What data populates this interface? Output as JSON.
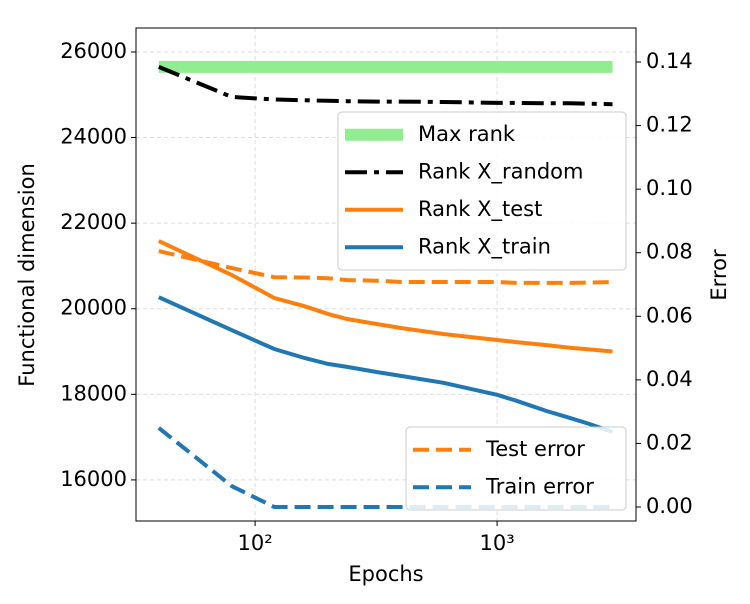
{
  "chart_data": {
    "type": "line",
    "xlabel": "Epochs",
    "ylabel": "Functional dimension",
    "y2label": "Error",
    "xscale": "log",
    "grid": true,
    "legend_loc": "upper right",
    "legend2_loc": "lower right",
    "x": [
      40,
      80,
      120,
      160,
      200,
      240,
      320,
      400,
      600,
      800,
      1000,
      1200,
      1600,
      2000,
      2400,
      3000
    ],
    "xlim": [
      32.2,
      3750
    ],
    "xticks": [
      {
        "value": 100,
        "label": "10²"
      },
      {
        "value": 1000,
        "label": "10³"
      }
    ],
    "ylim": [
      15040,
      26560
    ],
    "yticks": [
      16000,
      18000,
      20000,
      22000,
      24000,
      26000
    ],
    "y2lim": [
      -0.0044,
      0.1507
    ],
    "y2ticks": [
      {
        "value": 0,
        "label": "0.00"
      },
      0.02,
      0.04,
      0.06,
      0.08,
      {
        "value": 0.1,
        "label": "0.10"
      },
      0.12,
      0.14
    ],
    "series": [
      {
        "name": "Max rank",
        "color": "#90ee90",
        "style": "solid",
        "linewidth": 12,
        "values": [
          25650,
          25650,
          25650,
          25650,
          25650,
          25650,
          25650,
          25650,
          25650,
          25650,
          25650,
          25650,
          25650,
          25650,
          25650,
          25650
        ]
      },
      {
        "name": "Rank X_random",
        "color": "#000000",
        "style": "dashdot",
        "linewidth": 4,
        "values": [
          25650,
          24950,
          24890,
          24870,
          24860,
          24850,
          24840,
          24840,
          24830,
          24820,
          24810,
          24810,
          24800,
          24800,
          24790,
          24780
        ]
      },
      {
        "name": "Rank X_test",
        "color": "#ff7f0e",
        "style": "solid",
        "linewidth": 4,
        "values": [
          21580,
          20790,
          20250,
          20060,
          19880,
          19760,
          19640,
          19550,
          19410,
          19330,
          19270,
          19220,
          19150,
          19090,
          19050,
          19000
        ]
      },
      {
        "name": "Rank X_train",
        "color": "#1f77b4",
        "style": "solid",
        "linewidth": 4,
        "values": [
          20270,
          19500,
          19060,
          18850,
          18710,
          18640,
          18520,
          18430,
          18270,
          18110,
          17990,
          17850,
          17610,
          17450,
          17310,
          17120
        ]
      },
      {
        "name": "Test error",
        "color": "#ff7f0e",
        "style": "dashed",
        "linewidth": 4,
        "axis": "y2",
        "values": [
          0.0805,
          0.0752,
          0.0723,
          0.0722,
          0.072,
          0.0714,
          0.0712,
          0.0708,
          0.0708,
          0.0708,
          0.0708,
          0.0705,
          0.0705,
          0.0705,
          0.0706,
          0.0708
        ]
      },
      {
        "name": "Train error",
        "color": "#1f77b4",
        "style": "dashed",
        "linewidth": 4,
        "axis": "y2",
        "values": [
          0.0249,
          0.0066,
          0,
          0,
          0,
          0,
          0,
          0,
          0,
          0,
          0,
          0,
          0,
          0,
          0,
          0
        ]
      }
    ]
  }
}
